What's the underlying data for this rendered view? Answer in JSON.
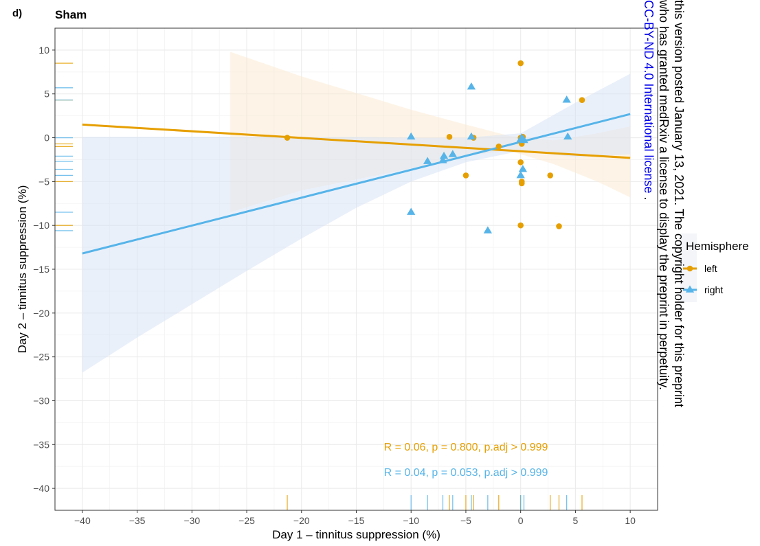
{
  "panel": {
    "letter": "d)",
    "title": "Sham"
  },
  "chart_data": {
    "type": "scatter",
    "title": "Sham",
    "xlabel": "Day 1 – tinnitus suppression (%)",
    "ylabel": "Day 2 – tinnitus suppression (%)",
    "xlim": [
      -42.5,
      12.5
    ],
    "ylim": [
      -42.5,
      12.5
    ],
    "xticks": [
      -40,
      -35,
      -30,
      -25,
      -20,
      -15,
      -10,
      -5,
      0,
      5,
      10
    ],
    "yticks": [
      10,
      5,
      0,
      -5,
      -10,
      -15,
      -20,
      -25,
      -30,
      -35,
      -40
    ],
    "grid": true,
    "legend": {
      "title": "Hemisphere",
      "position": "right"
    },
    "series": [
      {
        "name": "left",
        "color": "#E69F00",
        "marker": "circle",
        "points": [
          [
            -21.3,
            0.0
          ],
          [
            -6.5,
            0.1
          ],
          [
            -4.3,
            0.0
          ],
          [
            -5.0,
            -4.3
          ],
          [
            -2.0,
            -1.0
          ],
          [
            0.0,
            8.5
          ],
          [
            0.0,
            0.0
          ],
          [
            0.2,
            0.1
          ],
          [
            0.1,
            -0.7
          ],
          [
            0.0,
            -2.8
          ],
          [
            0.1,
            -5.0
          ],
          [
            0.1,
            -5.2
          ],
          [
            0.0,
            -10.0
          ],
          [
            2.7,
            -4.3
          ],
          [
            3.5,
            -10.1
          ],
          [
            5.6,
            4.3
          ]
        ],
        "fit": {
          "x": [
            -40,
            10
          ],
          "y": [
            1.5,
            -2.3
          ]
        },
        "band": {
          "x": [
            -26.5,
            -20,
            -10,
            -5,
            -1,
            3,
            7,
            10
          ],
          "lower": [
            -8.5,
            -6.0,
            -3.5,
            -2.0,
            -1.5,
            -3.0,
            -5.0,
            -6.8
          ],
          "upper": [
            9.8,
            7.0,
            3.2,
            1.5,
            0.2,
            -0.3,
            0.5,
            1.3
          ]
        },
        "rug_x": [
          -21.3,
          -6.5,
          -5.0,
          -4.3,
          -2.0,
          0.0,
          2.7,
          3.5,
          5.6
        ],
        "rug_y": [
          8.5,
          4.3,
          -0.7,
          -1.0,
          -5.0,
          -10.0
        ],
        "stat": "R = 0.06, p = 0.800, p.adj > 0.999"
      },
      {
        "name": "right",
        "color": "#56B4E9",
        "marker": "triangle",
        "points": [
          [
            -10.0,
            0.1
          ],
          [
            -10.0,
            -8.5
          ],
          [
            -8.5,
            -2.7
          ],
          [
            -7.0,
            -2.1
          ],
          [
            -7.1,
            -2.6
          ],
          [
            -6.2,
            -1.9
          ],
          [
            -4.5,
            5.8
          ],
          [
            -4.5,
            0.1
          ],
          [
            -3.0,
            -10.6
          ],
          [
            0.0,
            -0.2
          ],
          [
            0.1,
            0.0
          ],
          [
            0.3,
            -0.3
          ],
          [
            0.2,
            -3.6
          ],
          [
            0.0,
            -4.3
          ],
          [
            4.2,
            4.3
          ],
          [
            4.3,
            0.1
          ]
        ],
        "fit": {
          "x": [
            -40,
            10
          ],
          "y": [
            -13.2,
            2.7
          ]
        },
        "band": {
          "x": [
            -40,
            -35,
            -30,
            -25,
            -20,
            -15,
            -10,
            -5,
            0,
            5,
            10
          ],
          "lower": [
            -26.8,
            -22.8,
            -19.0,
            -15.2,
            -11.5,
            -8.0,
            -5.0,
            -2.8,
            -1.5,
            -2.2,
            -1.9
          ],
          "upper": [
            0.1,
            0.1,
            0.1,
            0.1,
            0.1,
            0.1,
            0.0,
            0.0,
            0.5,
            4.0,
            7.3
          ]
        },
        "rug_x": [
          -10.0,
          -8.5,
          -7.1,
          -6.2,
          -4.5,
          -3.0,
          0.0,
          0.3,
          4.2
        ],
        "rug_y": [
          5.7,
          4.3,
          0.0,
          -2.1,
          -2.7,
          -3.6,
          -4.3,
          -8.5,
          -10.6
        ],
        "stat": "R = 0.04, p = 0.053, p.adj > 0.999"
      }
    ]
  },
  "watermark": {
    "lines": [
      "this version posted January 13, 2021. The copyright holder for this preprint",
      "who has granted medRxiv a license to display the preprint in perpetuity.",
      "CC-BY-ND 4.0 International license ."
    ],
    "link_text": "CC-BY-ND 4.0 International license",
    "link_color": "#0000ee"
  }
}
